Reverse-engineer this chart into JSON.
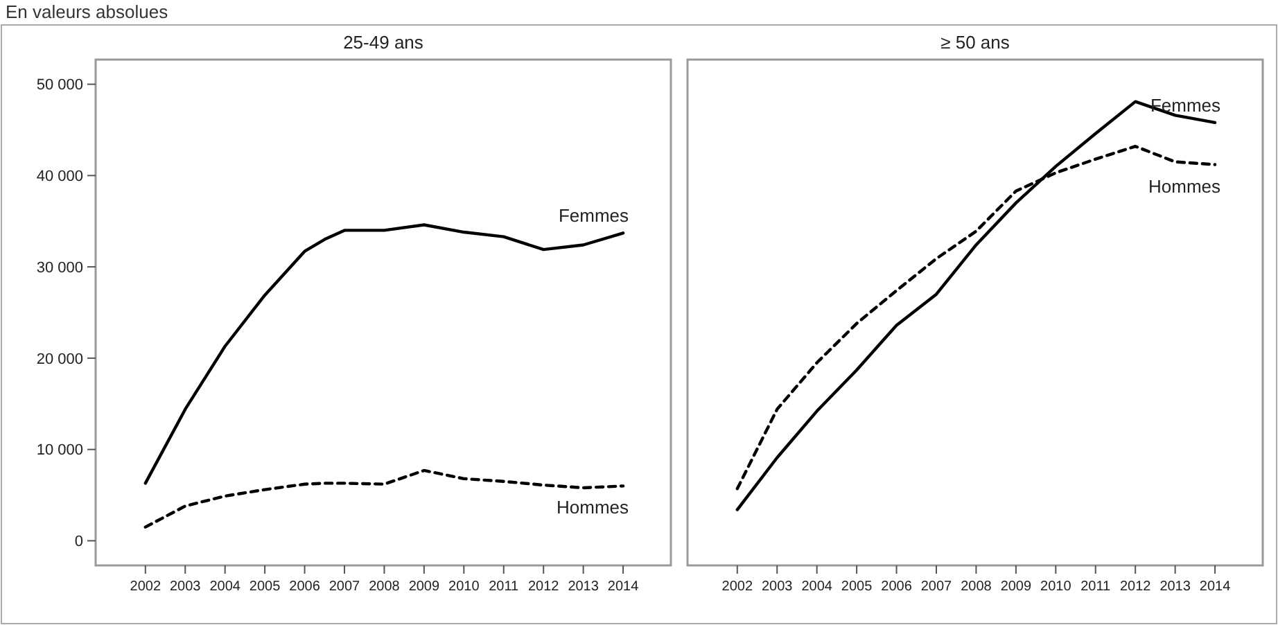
{
  "chart_data": [
    {
      "type": "line",
      "title": "25-49 ans",
      "annotations": [
        "En valeurs absolues"
      ],
      "x": [
        2002,
        2003,
        2004,
        2005,
        2006,
        2006.5,
        2007,
        2008,
        2009,
        2010,
        2011,
        2012,
        2013,
        2014
      ],
      "series": [
        {
          "name": "Femmes",
          "color": "#000000",
          "line_style": "solid",
          "values": [
            6300,
            14400,
            21300,
            26900,
            31700,
            33000,
            34000,
            34000,
            34600,
            33800,
            33300,
            31900,
            32400,
            33700
          ]
        },
        {
          "name": "Hommes",
          "color": "#000000",
          "line_style": "dashed",
          "values": [
            1500,
            3800,
            4900,
            5600,
            6200,
            6300,
            6300,
            6200,
            7700,
            6800,
            6500,
            6100,
            5800,
            6000
          ]
        }
      ],
      "xlim": [
        2000.75,
        2015.2
      ],
      "xticks": [
        2002,
        2003,
        2004,
        2005,
        2006,
        2007,
        2008,
        2009,
        2010,
        2011,
        2012,
        2013,
        2014
      ],
      "ylim": [
        -2700,
        52700
      ],
      "yticks": [
        0,
        {
          "value": 10000,
          "label": "10 000"
        },
        {
          "value": 20000,
          "label": "20 000"
        },
        {
          "value": 30000,
          "label": "30 000"
        },
        {
          "value": 40000,
          "label": "40 000"
        },
        {
          "value": 50000,
          "label": "50 000"
        }
      ],
      "grid": false
    },
    {
      "type": "line",
      "title": "≥ 50 ans",
      "x": [
        2002,
        2003,
        2004,
        2005,
        2006,
        2007,
        2008,
        2009,
        2010,
        2011,
        2012,
        2013,
        2014
      ],
      "series": [
        {
          "name": "Femmes",
          "color": "#000000",
          "line_style": "solid",
          "values": [
            3400,
            9100,
            14200,
            18700,
            23600,
            27000,
            32400,
            37000,
            41000,
            44600,
            48100,
            46600,
            45800
          ]
        },
        {
          "name": "Hommes",
          "color": "#000000",
          "line_style": "dashed",
          "values": [
            5700,
            14400,
            19500,
            23800,
            27400,
            30900,
            33900,
            38300,
            40300,
            41800,
            43200,
            41500,
            41200
          ]
        }
      ],
      "xlim": [
        2000.75,
        2015.2
      ],
      "xticks": [
        2002,
        2003,
        2004,
        2005,
        2006,
        2007,
        2008,
        2009,
        2010,
        2011,
        2012,
        2013,
        2014
      ],
      "ylim": [
        -2700,
        52700
      ],
      "tick_labels": "x",
      "grid": false
    }
  ]
}
